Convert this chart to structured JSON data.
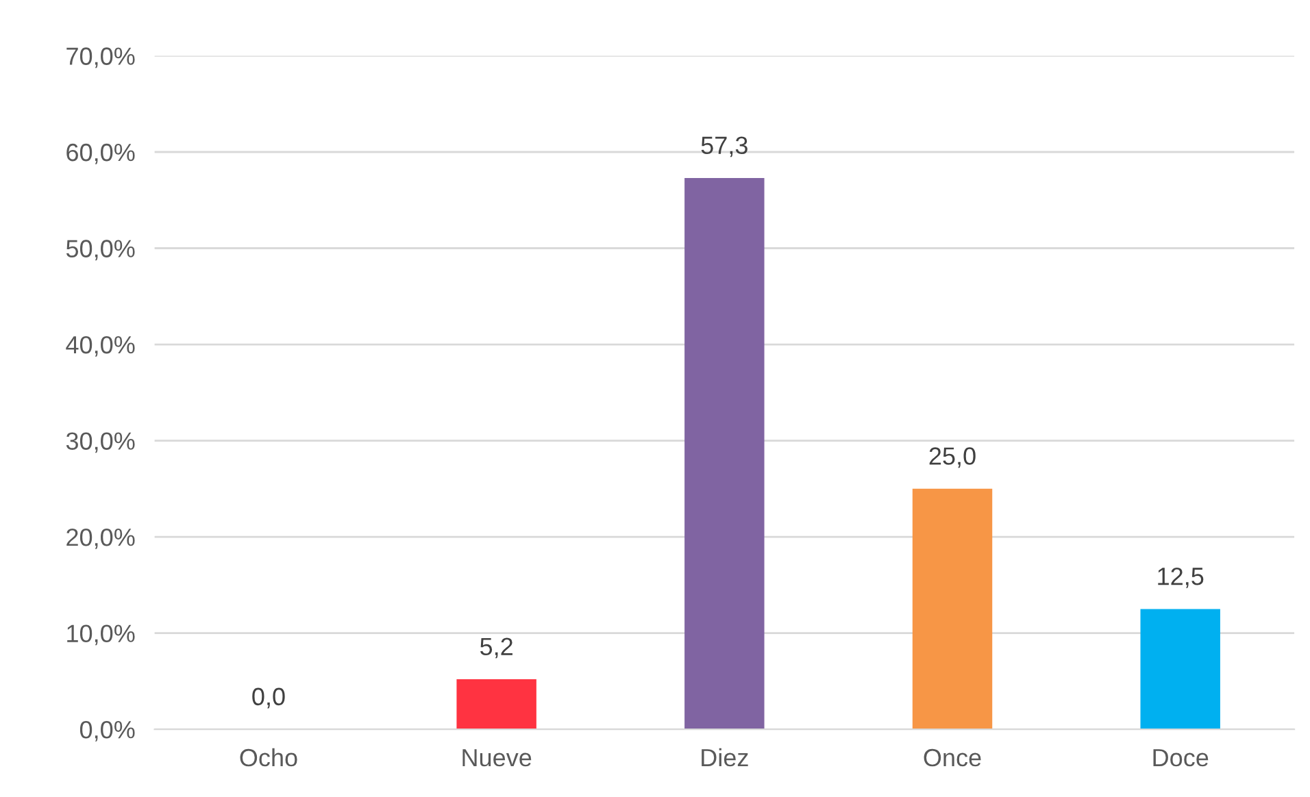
{
  "chart_data": {
    "type": "bar",
    "categories": [
      "Ocho",
      "Nueve",
      "Diez",
      "Once",
      "Doce"
    ],
    "values": [
      0.0,
      5.2,
      57.3,
      25.0,
      12.5
    ],
    "colors": [
      "#4f81bd",
      "#ff3341",
      "#8064a2",
      "#f79646",
      "#00b0f0"
    ],
    "value_labels": [
      "0,0",
      "5,2",
      "57,3",
      "25,0",
      "12,5"
    ],
    "ylim": [
      0,
      70
    ],
    "yticks": [
      {
        "value": 0,
        "label": "0,0%"
      },
      {
        "value": 10,
        "label": "10,0%"
      },
      {
        "value": 20,
        "label": "20,0%"
      },
      {
        "value": 30,
        "label": "30,0%"
      },
      {
        "value": 40,
        "label": "40,0%"
      },
      {
        "value": 50,
        "label": "50,0%"
      },
      {
        "value": 60,
        "label": "60,0%"
      },
      {
        "value": 70,
        "label": "70,0%"
      }
    ],
    "grid": "y",
    "legend": false
  }
}
